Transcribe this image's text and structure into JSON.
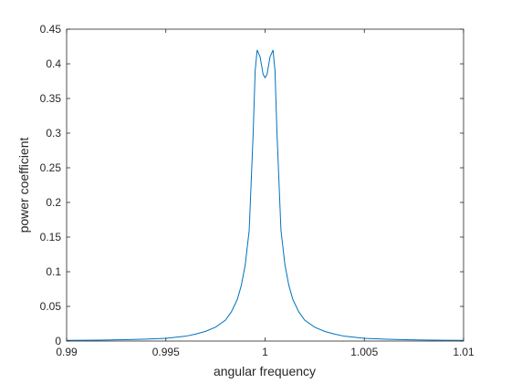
{
  "chart_data": {
    "type": "line",
    "title": "",
    "xlabel": "angular frequency",
    "ylabel": "power coefficient",
    "xlim": [
      0.99,
      1.01
    ],
    "ylim": [
      0,
      0.45
    ],
    "xticks": [
      0.99,
      0.995,
      1,
      1.005,
      1.01
    ],
    "xtick_labels": [
      "0.99",
      "0.995",
      "1",
      "1.005",
      "1.01"
    ],
    "yticks": [
      0,
      0.05,
      0.1,
      0.15,
      0.2,
      0.25,
      0.3,
      0.35,
      0.4,
      0.45
    ],
    "ytick_labels": [
      "0",
      "0.05",
      "0.1",
      "0.15",
      "0.2",
      "0.25",
      "0.3",
      "0.35",
      "0.4",
      "0.45"
    ],
    "grid": false,
    "line_color": "#0072BD",
    "series": [
      {
        "x": [
          0.99,
          0.991,
          0.992,
          0.993,
          0.994,
          0.995,
          0.996,
          0.9965,
          0.997,
          0.9975,
          0.998,
          0.9983,
          0.9986,
          0.9988,
          0.999,
          0.9992,
          0.9994,
          0.9995,
          0.9996,
          0.99975,
          0.9999,
          1.0,
          1.0001,
          1.00025,
          1.0004,
          1.0005,
          1.0006,
          1.0008,
          1.001,
          1.0012,
          1.0014,
          1.0017,
          1.002,
          1.0025,
          1.003,
          1.0035,
          1.004,
          1.005,
          1.006,
          1.007,
          1.008,
          1.009,
          1.01
        ],
        "y": [
          0.001,
          0.0012,
          0.0015,
          0.002,
          0.0028,
          0.004,
          0.007,
          0.01,
          0.014,
          0.02,
          0.03,
          0.042,
          0.06,
          0.08,
          0.11,
          0.16,
          0.3,
          0.39,
          0.42,
          0.41,
          0.385,
          0.38,
          0.385,
          0.41,
          0.42,
          0.39,
          0.3,
          0.16,
          0.11,
          0.08,
          0.06,
          0.042,
          0.03,
          0.02,
          0.014,
          0.01,
          0.007,
          0.004,
          0.0028,
          0.002,
          0.0015,
          0.0012,
          0.001
        ]
      }
    ]
  }
}
